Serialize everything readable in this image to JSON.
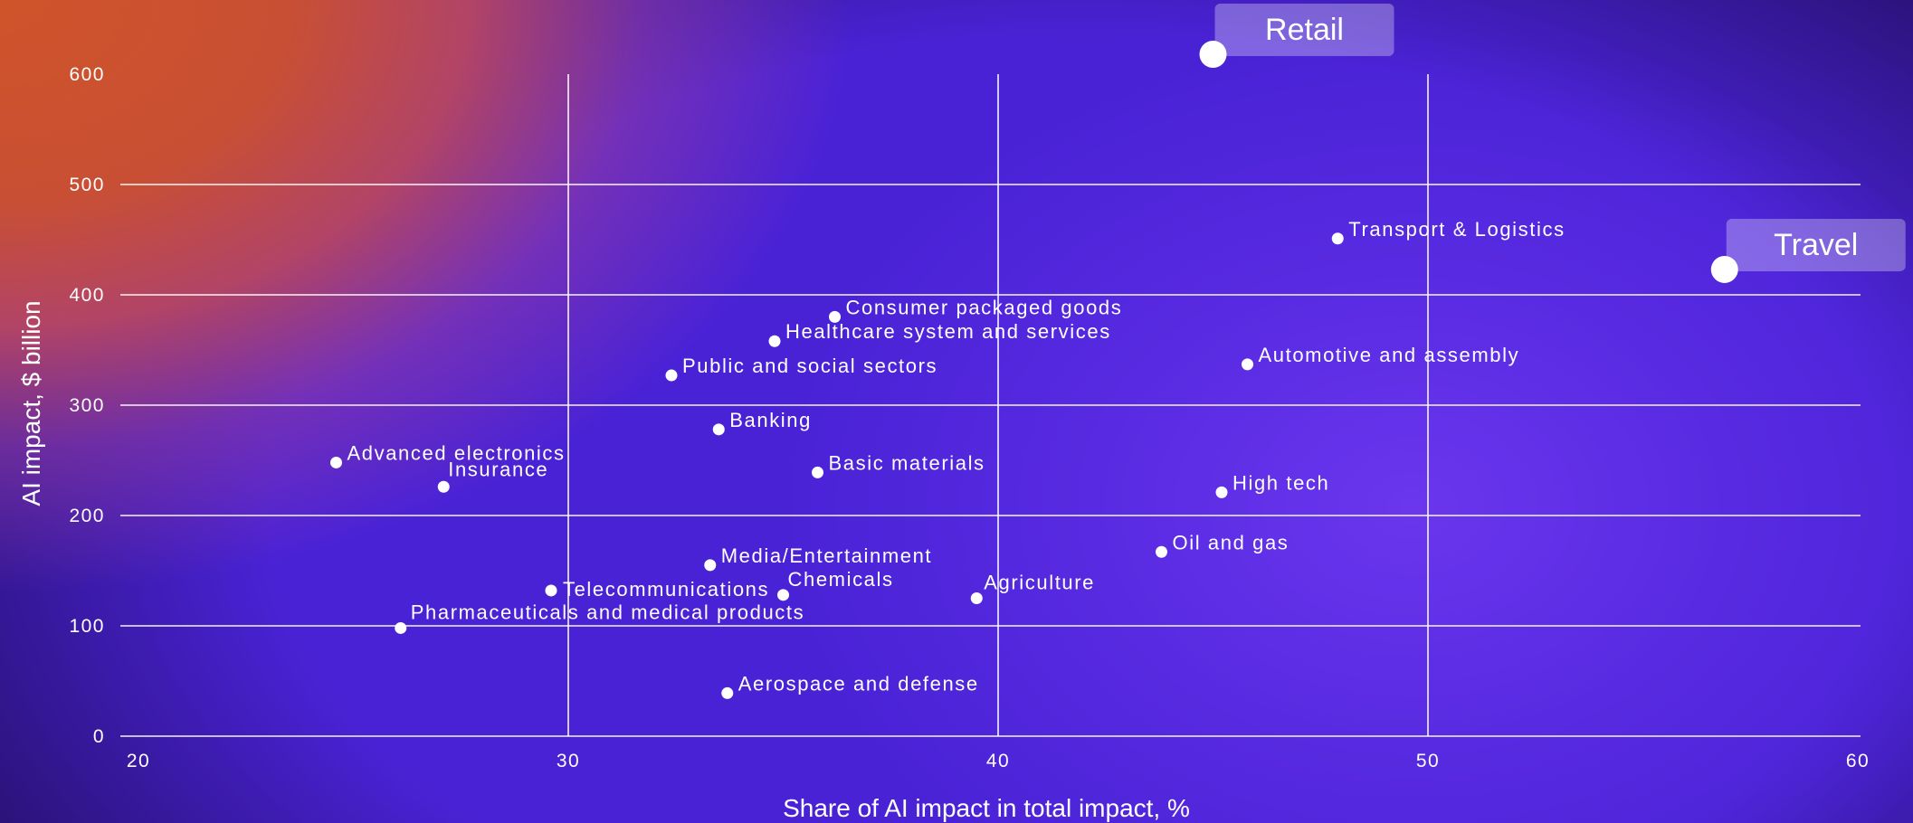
{
  "chart_data": {
    "type": "scatter",
    "xlabel": "Share of AI impact in total impact, %",
    "ylabel": "AI impact, $ billion",
    "xlim": [
      20,
      60
    ],
    "ylim": [
      0,
      600
    ],
    "x_ticks": [
      20,
      30,
      40,
      50,
      60
    ],
    "y_ticks": [
      0,
      100,
      200,
      300,
      400,
      500,
      600
    ],
    "grid": true,
    "points": [
      {
        "label": "Advanced electronics",
        "x": 24.6,
        "y": 248
      },
      {
        "label": "Insurance",
        "x": 27.1,
        "y": 226
      },
      {
        "label": "Pharmaceuticals and medical products",
        "x": 26.1,
        "y": 98
      },
      {
        "label": "Telecommunications",
        "x": 29.6,
        "y": 132
      },
      {
        "label": "Public and social sectors",
        "x": 32.4,
        "y": 327
      },
      {
        "label": "Banking",
        "x": 33.5,
        "y": 278
      },
      {
        "label": "Media/Entertainment",
        "x": 33.3,
        "y": 155
      },
      {
        "label": "Aerospace and defense",
        "x": 33.7,
        "y": 39
      },
      {
        "label": "Healthcare system and services",
        "x": 34.8,
        "y": 358
      },
      {
        "label": "Chemicals",
        "x": 35.0,
        "y": 128
      },
      {
        "label": "Consumer packaged goods",
        "x": 36.2,
        "y": 380
      },
      {
        "label": "Basic materials",
        "x": 35.8,
        "y": 239
      },
      {
        "label": "Agriculture",
        "x": 39.5,
        "y": 125
      },
      {
        "label": "Oil and gas",
        "x": 43.8,
        "y": 167
      },
      {
        "label": "High tech",
        "x": 45.2,
        "y": 221
      },
      {
        "label": "Automotive and assembly",
        "x": 45.8,
        "y": 337
      },
      {
        "label": "Transport & Logistics",
        "x": 47.9,
        "y": 451
      }
    ],
    "highlighted_points": [
      {
        "label": "Retail",
        "x": 45.0,
        "y": 618
      },
      {
        "label": "Travel",
        "x": 56.9,
        "y": 423
      }
    ],
    "colors": {
      "point": "#ffffff",
      "grid": "#ffffff",
      "text": "#ffffff",
      "highlight_box": "rgba(255,255,255,0.3)"
    }
  }
}
